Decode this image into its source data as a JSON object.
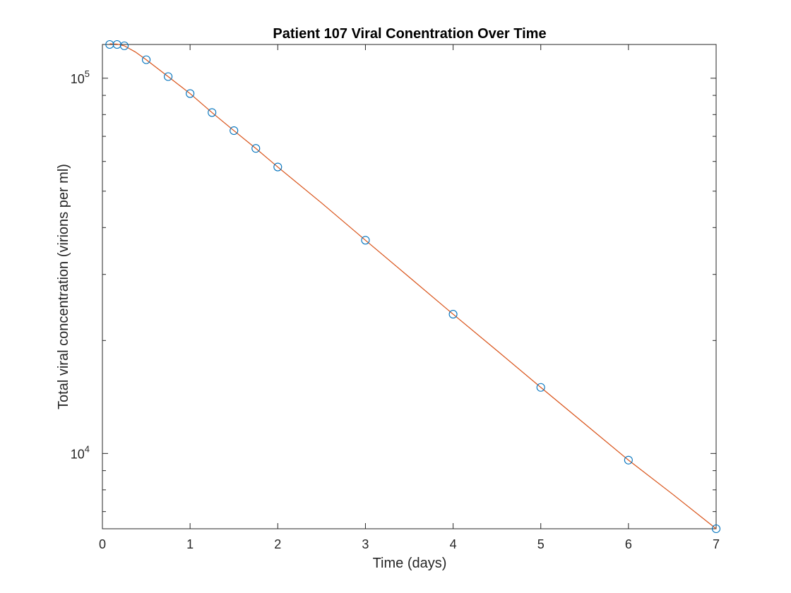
{
  "chart_data": {
    "type": "scatter",
    "title": "Patient 107 Viral Conentration Over Time",
    "xlabel": "Time (days)",
    "ylabel": "Total viral concentration (virions per ml)",
    "xlim": [
      0,
      7
    ],
    "ylim": [
      6300,
      123000
    ],
    "yscale": "log",
    "grid": false,
    "x_ticks": [
      "0",
      "1",
      "2",
      "3",
      "4",
      "5",
      "6",
      "7"
    ],
    "y_ticks": [
      {
        "base": "10",
        "exponent": "4",
        "value": 10000
      },
      {
        "base": "10",
        "exponent": "5",
        "value": 100000
      }
    ],
    "series": [
      {
        "style": "markers",
        "color": "#0072BD",
        "x": [
          0.083,
          0.167,
          0.25,
          0.5,
          0.75,
          1,
          1.25,
          1.5,
          1.75,
          2,
          3,
          4,
          5,
          6,
          7
        ],
        "y": [
          123000,
          123000,
          122000,
          112000,
          101000,
          91000,
          81000,
          72500,
          65000,
          58000,
          37000,
          23500,
          15000,
          9600,
          6300
        ]
      },
      {
        "style": "line",
        "color": "#D95319",
        "x": [
          0.083,
          0.167,
          0.25,
          0.375,
          0.5,
          0.75,
          1,
          1.25,
          1.5,
          1.75,
          2,
          2.5,
          3,
          3.5,
          4,
          4.5,
          5,
          5.5,
          6,
          6.5,
          7
        ],
        "y": [
          123500,
          123300,
          122000,
          117500,
          112000,
          101000,
          91000,
          81000,
          72500,
          65000,
          58000,
          46500,
          37000,
          29500,
          23500,
          18800,
          15000,
          12000,
          9600,
          7800,
          6300
        ]
      }
    ]
  }
}
